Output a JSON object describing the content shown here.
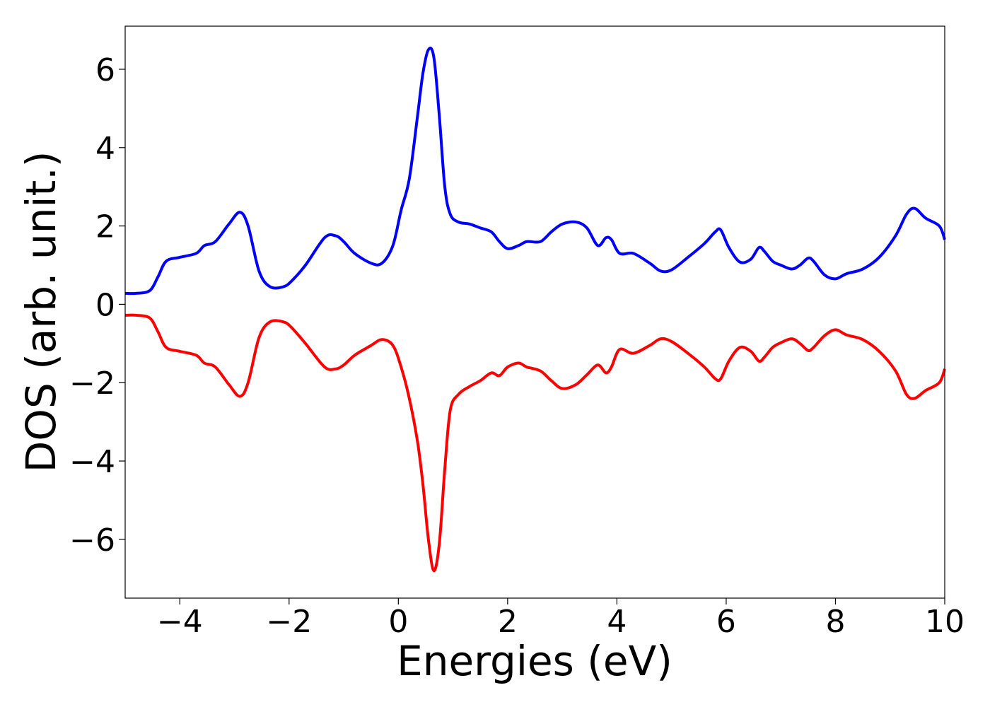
{
  "chart_data": {
    "type": "line",
    "title": "",
    "xlabel": "Energies (eV)",
    "ylabel": "DOS (arb. unit.)",
    "xlim": [
      -5,
      10
    ],
    "ylim": [
      -7.5,
      7.1
    ],
    "xticks": [
      -4,
      -2,
      0,
      2,
      4,
      6,
      8,
      10
    ],
    "yticks": [
      -6,
      -4,
      -2,
      0,
      2,
      4,
      6
    ],
    "grid": false,
    "legend": "none",
    "series": [
      {
        "color": "#0000ff",
        "points": [
          [
            -5.0,
            0.28
          ],
          [
            -4.8,
            0.28
          ],
          [
            -4.55,
            0.35
          ],
          [
            -4.4,
            0.7
          ],
          [
            -4.25,
            1.1
          ],
          [
            -4.0,
            1.2
          ],
          [
            -3.7,
            1.3
          ],
          [
            -3.55,
            1.5
          ],
          [
            -3.35,
            1.6
          ],
          [
            -3.1,
            2.05
          ],
          [
            -2.9,
            2.35
          ],
          [
            -2.75,
            2.0
          ],
          [
            -2.55,
            0.85
          ],
          [
            -2.35,
            0.45
          ],
          [
            -2.1,
            0.45
          ],
          [
            -1.95,
            0.6
          ],
          [
            -1.7,
            1.0
          ],
          [
            -1.35,
            1.7
          ],
          [
            -1.15,
            1.75
          ],
          [
            -1.0,
            1.6
          ],
          [
            -0.8,
            1.3
          ],
          [
            -0.5,
            1.05
          ],
          [
            -0.3,
            1.05
          ],
          [
            -0.1,
            1.5
          ],
          [
            0.05,
            2.4
          ],
          [
            0.2,
            3.2
          ],
          [
            0.35,
            4.8
          ],
          [
            0.45,
            5.9
          ],
          [
            0.55,
            6.5
          ],
          [
            0.65,
            6.3
          ],
          [
            0.75,
            4.8
          ],
          [
            0.85,
            3.0
          ],
          [
            0.95,
            2.3
          ],
          [
            1.1,
            2.1
          ],
          [
            1.3,
            2.05
          ],
          [
            1.5,
            1.95
          ],
          [
            1.7,
            1.85
          ],
          [
            1.85,
            1.6
          ],
          [
            2.0,
            1.42
          ],
          [
            2.2,
            1.5
          ],
          [
            2.35,
            1.6
          ],
          [
            2.6,
            1.6
          ],
          [
            2.8,
            1.85
          ],
          [
            3.0,
            2.05
          ],
          [
            3.25,
            2.1
          ],
          [
            3.45,
            1.95
          ],
          [
            3.65,
            1.5
          ],
          [
            3.8,
            1.7
          ],
          [
            3.9,
            1.65
          ],
          [
            4.05,
            1.3
          ],
          [
            4.3,
            1.3
          ],
          [
            4.6,
            1.05
          ],
          [
            4.8,
            0.85
          ],
          [
            5.0,
            0.88
          ],
          [
            5.3,
            1.2
          ],
          [
            5.6,
            1.55
          ],
          [
            5.8,
            1.85
          ],
          [
            5.9,
            1.9
          ],
          [
            6.05,
            1.45
          ],
          [
            6.25,
            1.08
          ],
          [
            6.45,
            1.15
          ],
          [
            6.6,
            1.45
          ],
          [
            6.7,
            1.35
          ],
          [
            6.85,
            1.1
          ],
          [
            7.0,
            1.0
          ],
          [
            7.2,
            0.9
          ],
          [
            7.35,
            1.0
          ],
          [
            7.5,
            1.18
          ],
          [
            7.6,
            1.1
          ],
          [
            7.8,
            0.75
          ],
          [
            8.0,
            0.65
          ],
          [
            8.2,
            0.78
          ],
          [
            8.5,
            0.9
          ],
          [
            8.8,
            1.2
          ],
          [
            9.1,
            1.75
          ],
          [
            9.3,
            2.3
          ],
          [
            9.45,
            2.45
          ],
          [
            9.65,
            2.2
          ],
          [
            9.9,
            2.0
          ],
          [
            10.0,
            1.65
          ]
        ]
      },
      {
        "color": "#ff0000",
        "points": [
          [
            -5.0,
            -0.28
          ],
          [
            -4.8,
            -0.28
          ],
          [
            -4.55,
            -0.35
          ],
          [
            -4.4,
            -0.7
          ],
          [
            -4.25,
            -1.1
          ],
          [
            -4.0,
            -1.2
          ],
          [
            -3.7,
            -1.3
          ],
          [
            -3.55,
            -1.5
          ],
          [
            -3.35,
            -1.6
          ],
          [
            -3.1,
            -2.05
          ],
          [
            -2.9,
            -2.35
          ],
          [
            -2.75,
            -2.0
          ],
          [
            -2.55,
            -0.85
          ],
          [
            -2.35,
            -0.45
          ],
          [
            -2.1,
            -0.45
          ],
          [
            -1.95,
            -0.6
          ],
          [
            -1.7,
            -1.0
          ],
          [
            -1.35,
            -1.6
          ],
          [
            -1.15,
            -1.65
          ],
          [
            -1.0,
            -1.55
          ],
          [
            -0.8,
            -1.3
          ],
          [
            -0.5,
            -1.05
          ],
          [
            -0.3,
            -0.9
          ],
          [
            -0.1,
            -1.05
          ],
          [
            0.05,
            -1.6
          ],
          [
            0.2,
            -2.4
          ],
          [
            0.35,
            -3.5
          ],
          [
            0.45,
            -4.6
          ],
          [
            0.55,
            -6.0
          ],
          [
            0.65,
            -6.8
          ],
          [
            0.75,
            -6.1
          ],
          [
            0.85,
            -4.2
          ],
          [
            0.95,
            -2.7
          ],
          [
            1.1,
            -2.3
          ],
          [
            1.3,
            -2.1
          ],
          [
            1.5,
            -1.95
          ],
          [
            1.7,
            -1.75
          ],
          [
            1.85,
            -1.82
          ],
          [
            2.0,
            -1.6
          ],
          [
            2.2,
            -1.5
          ],
          [
            2.35,
            -1.6
          ],
          [
            2.6,
            -1.7
          ],
          [
            2.8,
            -1.95
          ],
          [
            3.0,
            -2.15
          ],
          [
            3.25,
            -2.05
          ],
          [
            3.45,
            -1.8
          ],
          [
            3.65,
            -1.55
          ],
          [
            3.8,
            -1.75
          ],
          [
            3.9,
            -1.6
          ],
          [
            4.05,
            -1.15
          ],
          [
            4.3,
            -1.25
          ],
          [
            4.6,
            -1.05
          ],
          [
            4.8,
            -0.88
          ],
          [
            5.0,
            -0.95
          ],
          [
            5.3,
            -1.25
          ],
          [
            5.6,
            -1.6
          ],
          [
            5.8,
            -1.9
          ],
          [
            5.9,
            -1.9
          ],
          [
            6.05,
            -1.45
          ],
          [
            6.25,
            -1.1
          ],
          [
            6.45,
            -1.2
          ],
          [
            6.6,
            -1.45
          ],
          [
            6.7,
            -1.35
          ],
          [
            6.85,
            -1.1
          ],
          [
            7.0,
            -0.98
          ],
          [
            7.2,
            -0.88
          ],
          [
            7.35,
            -1.0
          ],
          [
            7.5,
            -1.18
          ],
          [
            7.6,
            -1.1
          ],
          [
            7.8,
            -0.8
          ],
          [
            8.0,
            -0.65
          ],
          [
            8.2,
            -0.78
          ],
          [
            8.5,
            -0.9
          ],
          [
            8.8,
            -1.2
          ],
          [
            9.1,
            -1.7
          ],
          [
            9.3,
            -2.3
          ],
          [
            9.45,
            -2.4
          ],
          [
            9.65,
            -2.2
          ],
          [
            9.9,
            -2.0
          ],
          [
            10.0,
            -1.65
          ]
        ]
      }
    ]
  }
}
